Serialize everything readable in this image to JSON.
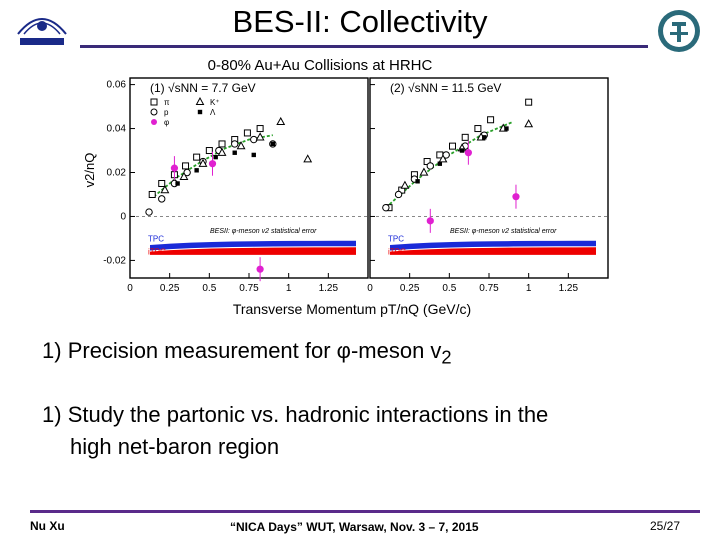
{
  "slide": {
    "title": "BES-II:  Collectivity",
    "bullet1_prefix": "1)",
    "bullet1_text": "Precision measurement for φ-meson v",
    "bullet1_sub": "2",
    "bullet2_prefix": "1)",
    "bullet2_line1": "Study the partonic vs. hadronic interactions in the",
    "bullet2_line2": "high net-baron region",
    "footer_author": "Nu Xu",
    "footer_event_quoted": "“NICA Days”",
    "footer_event_rest": " WUT, Warsaw, Nov. 3 – 7, 2015",
    "footer_page": "25/27"
  },
  "chart_data": {
    "type": "scatter",
    "title": "0-80% Au+Au Collisions at HRHC",
    "xlabel": "Transverse Momentum pT/nQ (GeV/c)",
    "ylabel": "v2/nQ",
    "xlim": [
      0,
      1.5
    ],
    "ylim": [
      -0.028,
      0.063
    ],
    "x_ticks": [
      "0",
      "0.25",
      "0.5",
      "0.75",
      "1",
      "1.25"
    ],
    "y_ticks": [
      "-0.02",
      "0",
      "0.02",
      "0.04",
      "0.06"
    ],
    "colors": {
      "phi": "#e020d0",
      "red_band": "#ee0000",
      "blue_band": "#1a2ad8",
      "green_fit": "#2aa02a",
      "axis": "#000000"
    },
    "legend": [
      "π",
      "p",
      "φ",
      "K⁺",
      "Λ"
    ],
    "band_labels": {
      "tpc": "TPC",
      "itpc": "iTPC",
      "note": "BESII: φ-meson v2 statistical error"
    },
    "panels": [
      {
        "label": "(1) √sNN = 7.7 GeV",
        "series": [
          {
            "name": "pi",
            "marker": "open-square",
            "x": [
              0.14,
              0.2,
              0.28,
              0.35,
              0.42,
              0.5,
              0.58,
              0.66,
              0.74,
              0.82
            ],
            "y": [
              0.01,
              0.015,
              0.019,
              0.023,
              0.027,
              0.03,
              0.033,
              0.035,
              0.038,
              0.04
            ]
          },
          {
            "name": "p",
            "marker": "open-circle",
            "x": [
              0.12,
              0.2,
              0.28,
              0.36,
              0.46,
              0.56,
              0.66,
              0.78,
              0.9
            ],
            "y": [
              0.002,
              0.008,
              0.015,
              0.02,
              0.025,
              0.03,
              0.033,
              0.035,
              0.033
            ]
          },
          {
            "name": "K+",
            "marker": "open-triangle",
            "x": [
              0.22,
              0.34,
              0.46,
              0.58,
              0.7,
              0.82,
              0.95,
              1.12
            ],
            "y": [
              0.012,
              0.018,
              0.024,
              0.029,
              0.032,
              0.036,
              0.043,
              0.026
            ]
          },
          {
            "name": "Lambda",
            "marker": "filled-square",
            "x": [
              0.3,
              0.42,
              0.54,
              0.66,
              0.78,
              0.9
            ],
            "y": [
              0.015,
              0.021,
              0.027,
              0.029,
              0.028,
              0.033
            ]
          },
          {
            "name": "phi",
            "marker": "filled-circle",
            "x": [
              0.28,
              0.52,
              0.82
            ],
            "y": [
              0.022,
              0.024,
              -0.024
            ]
          }
        ],
        "fit": {
          "x": [
            0.15,
            0.3,
            0.45,
            0.6,
            0.75,
            0.9
          ],
          "y": [
            0.009,
            0.018,
            0.025,
            0.031,
            0.035,
            0.037
          ]
        }
      },
      {
        "label": "(2) √sNN = 11.5 GeV",
        "series": [
          {
            "name": "pi",
            "marker": "open-square",
            "x": [
              0.12,
              0.2,
              0.28,
              0.36,
              0.44,
              0.52,
              0.6,
              0.68,
              0.76,
              1.0
            ],
            "y": [
              0.004,
              0.012,
              0.019,
              0.025,
              0.028,
              0.032,
              0.036,
              0.04,
              0.044,
              0.052
            ]
          },
          {
            "name": "p",
            "marker": "open-circle",
            "x": [
              0.1,
              0.18,
              0.28,
              0.38,
              0.48,
              0.6,
              0.72
            ],
            "y": [
              0.004,
              0.01,
              0.017,
              0.023,
              0.028,
              0.032,
              0.037
            ]
          },
          {
            "name": "K+",
            "marker": "open-triangle",
            "x": [
              0.22,
              0.34,
              0.46,
              0.58,
              0.7,
              0.84,
              1.0
            ],
            "y": [
              0.014,
              0.02,
              0.026,
              0.031,
              0.036,
              0.04,
              0.042
            ]
          },
          {
            "name": "Lambda",
            "marker": "filled-square",
            "x": [
              0.3,
              0.44,
              0.58,
              0.72,
              0.86
            ],
            "y": [
              0.016,
              0.024,
              0.03,
              0.036,
              0.04
            ]
          },
          {
            "name": "phi",
            "marker": "filled-circle",
            "x": [
              0.38,
              0.62,
              0.92
            ],
            "y": [
              -0.002,
              0.029,
              0.009
            ]
          }
        ],
        "fit": {
          "x": [
            0.1,
            0.3,
            0.5,
            0.7,
            0.9
          ],
          "y": [
            0.004,
            0.017,
            0.028,
            0.037,
            0.043
          ]
        }
      }
    ]
  }
}
